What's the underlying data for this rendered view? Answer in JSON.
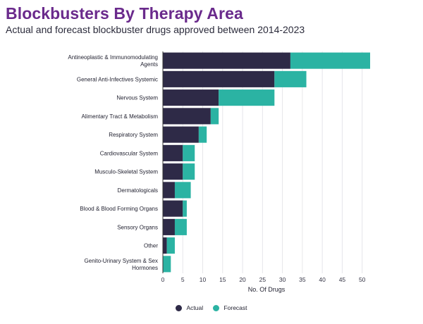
{
  "header": {
    "title": "Blockbusters By Therapy Area",
    "subtitle": "Actual and forecast blockbuster drugs approved between 2014-2023"
  },
  "colors": {
    "actual": "#2e2a47",
    "forecast": "#2bb3a3"
  },
  "chart_data": {
    "type": "bar",
    "orientation": "horizontal",
    "stacked": true,
    "categories": [
      [
        "Antineoplastic & Immunomodulating",
        "Agents"
      ],
      [
        "General Anti-Infectives Systemic"
      ],
      [
        "Nervous System"
      ],
      [
        "Alimentary Tract & Metabolism"
      ],
      [
        "Respiratory System"
      ],
      [
        "Cardiovascular System"
      ],
      [
        "Musculo-Skeletal System"
      ],
      [
        "Dermatologicals"
      ],
      [
        "Blood & Blood Forming Organs"
      ],
      [
        "Sensory Organs"
      ],
      [
        "Other"
      ],
      [
        "Genito-Urinary System & Sex",
        "Hormones"
      ]
    ],
    "series": [
      {
        "name": "Actual",
        "values": [
          32,
          28,
          14,
          12,
          9,
          5,
          5,
          3,
          5,
          3,
          1,
          0
        ]
      },
      {
        "name": "Forecast",
        "values": [
          20,
          8,
          14,
          2,
          2,
          3,
          3,
          4,
          1,
          3,
          2,
          2
        ]
      }
    ],
    "xlabel": "No. Of Drugs",
    "xlim": [
      0,
      52
    ],
    "xticks": [
      0,
      5,
      10,
      15,
      20,
      25,
      30,
      35,
      40,
      45,
      50
    ],
    "legend_position": "bottom",
    "grid": "vertical"
  }
}
